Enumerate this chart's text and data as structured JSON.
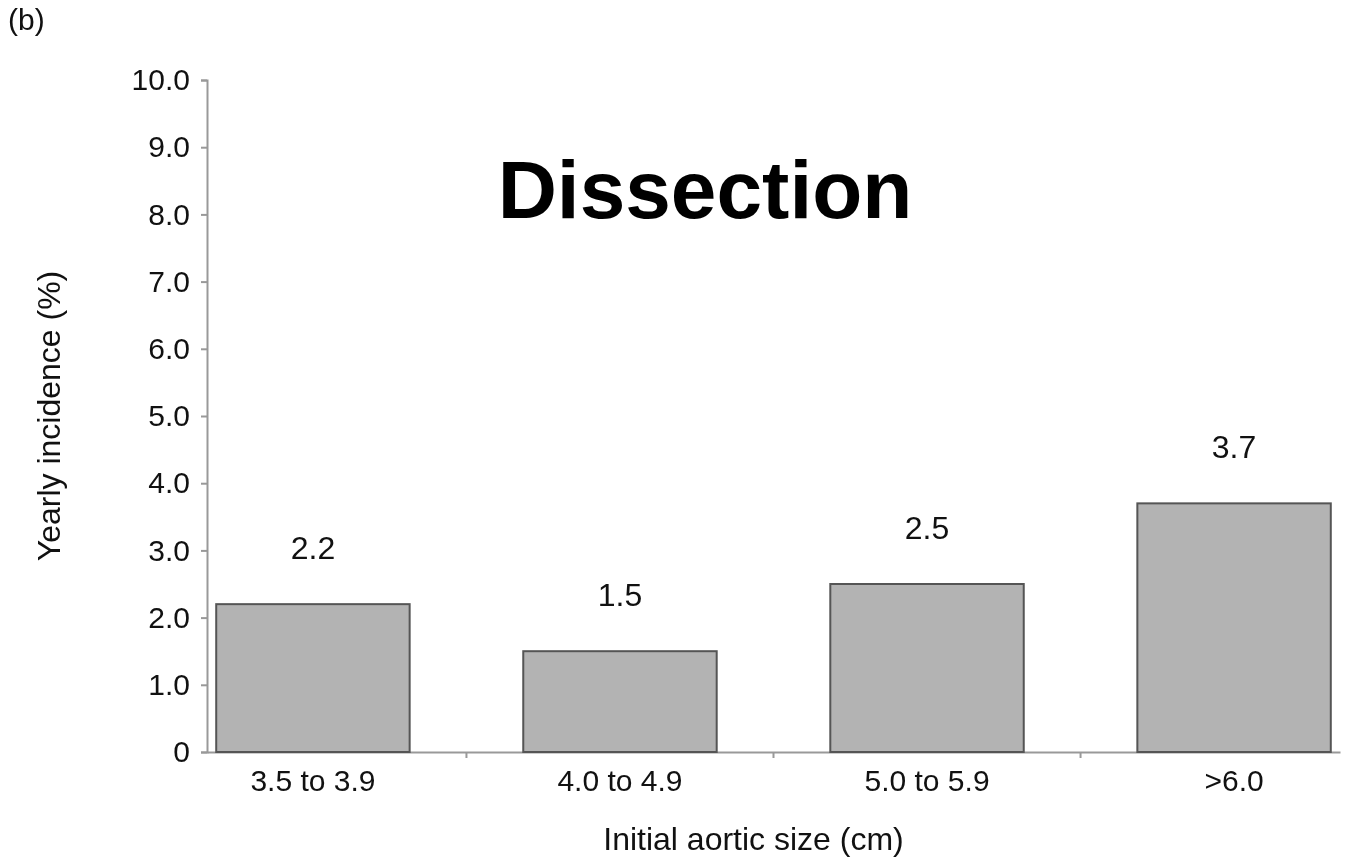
{
  "chart_data": {
    "type": "bar",
    "title": "Dissection",
    "xlabel": "Initial aortic size (cm)",
    "ylabel": "Yearly incidence (%)",
    "annotations": [
      "(b)"
    ],
    "categories": [
      "3.5 to 3.9",
      "4.0 to 4.9",
      "5.0 to 5.9",
      ">6.0"
    ],
    "values": [
      2.2,
      1.5,
      2.5,
      3.7
    ],
    "color": "#b3b3b3",
    "data_labels": true,
    "ylim": [
      0,
      10
    ],
    "yticks": [
      0,
      {
        "value": 1,
        "label": "1.0"
      },
      {
        "value": 2,
        "label": "2.0"
      },
      {
        "value": 3,
        "label": "3.0"
      },
      {
        "value": 4,
        "label": "4.0"
      },
      {
        "value": 5,
        "label": "5.0"
      },
      {
        "value": 6,
        "label": "6.0"
      },
      {
        "value": 7,
        "label": "7.0"
      },
      {
        "value": 8,
        "label": "8.0"
      },
      {
        "value": 9,
        "label": "9.0"
      },
      {
        "value": 10,
        "label": "10.0"
      }
    ],
    "grid": false
  }
}
